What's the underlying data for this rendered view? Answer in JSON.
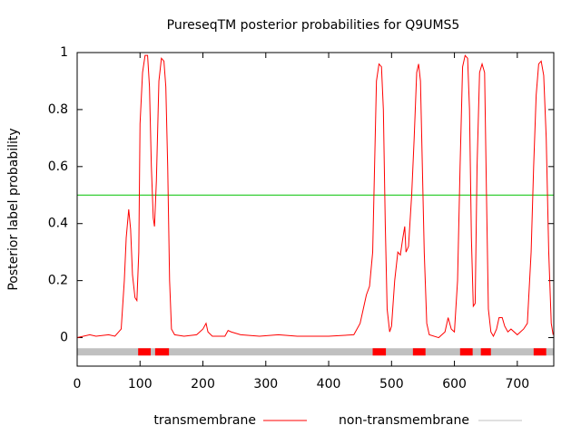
{
  "chart_data": {
    "type": "line",
    "title": "PureseqTM posterior probabilities for Q9UMS5",
    "y_label": "Posterior label probability",
    "xlim": [
      0,
      758
    ],
    "ylim": [
      -0.1,
      1
    ],
    "xticks": [
      0,
      100,
      200,
      300,
      400,
      500,
      600,
      700
    ],
    "yticks": [
      0,
      0.2,
      0.4,
      0.6,
      0.8,
      1
    ],
    "threshold": {
      "value": 0.5,
      "color": "#00c000"
    },
    "series": [
      {
        "name": "transmembrane",
        "color": "#ff0000",
        "x": [
          0,
          10,
          20,
          30,
          50,
          60,
          70,
          75,
          78,
          82,
          85,
          88,
          92,
          95,
          98,
          100,
          104,
          108,
          112,
          115,
          118,
          121,
          123,
          126,
          130,
          134,
          138,
          141,
          144,
          147,
          150,
          155,
          170,
          190,
          200,
          205,
          208,
          215,
          235,
          240,
          245,
          260,
          290,
          320,
          350,
          400,
          440,
          450,
          455,
          460,
          465,
          470,
          473,
          476,
          480,
          484,
          487,
          490,
          493,
          497,
          500,
          505,
          510,
          514,
          518,
          521,
          523,
          527,
          532,
          536,
          540,
          543,
          546,
          549,
          552,
          556,
          560,
          575,
          585,
          590,
          595,
          600,
          605,
          609,
          613,
          617,
          621,
          624,
          627,
          630,
          633,
          636,
          640,
          644,
          648,
          651,
          654,
          658,
          662,
          667,
          671,
          676,
          680,
          685,
          690,
          700,
          710,
          716,
          722,
          726,
          730,
          734,
          738,
          742,
          746,
          750,
          754,
          757
        ],
        "values": [
          0,
          0.005,
          0.01,
          0.005,
          0.01,
          0.005,
          0.03,
          0.2,
          0.35,
          0.45,
          0.38,
          0.22,
          0.14,
          0.13,
          0.3,
          0.75,
          0.93,
          0.99,
          0.99,
          0.88,
          0.6,
          0.42,
          0.39,
          0.55,
          0.9,
          0.98,
          0.97,
          0.88,
          0.6,
          0.2,
          0.03,
          0.01,
          0.005,
          0.01,
          0.03,
          0.05,
          0.02,
          0.005,
          0.005,
          0.025,
          0.02,
          0.01,
          0.005,
          0.01,
          0.005,
          0.005,
          0.01,
          0.05,
          0.1,
          0.15,
          0.18,
          0.3,
          0.6,
          0.9,
          0.96,
          0.95,
          0.8,
          0.4,
          0.1,
          0.02,
          0.04,
          0.2,
          0.3,
          0.29,
          0.35,
          0.39,
          0.3,
          0.32,
          0.5,
          0.7,
          0.93,
          0.96,
          0.9,
          0.6,
          0.3,
          0.05,
          0.01,
          0,
          0.02,
          0.07,
          0.03,
          0.02,
          0.2,
          0.6,
          0.95,
          0.99,
          0.98,
          0.8,
          0.35,
          0.11,
          0.12,
          0.6,
          0.93,
          0.96,
          0.93,
          0.5,
          0.1,
          0.02,
          0.005,
          0.03,
          0.07,
          0.07,
          0.04,
          0.02,
          0.03,
          0.01,
          0.03,
          0.05,
          0.3,
          0.6,
          0.85,
          0.96,
          0.97,
          0.92,
          0.7,
          0.3,
          0.05,
          0.01
        ]
      }
    ],
    "non_transmembrane": {
      "name": "non-transmembrane",
      "color": "#c0c0c0",
      "level": -0.05
    },
    "tm_segments": [
      {
        "start": 97,
        "end": 117
      },
      {
        "start": 124,
        "end": 146
      },
      {
        "start": 470,
        "end": 491
      },
      {
        "start": 534,
        "end": 554
      },
      {
        "start": 609,
        "end": 629
      },
      {
        "start": 642,
        "end": 658
      },
      {
        "start": 726,
        "end": 746
      }
    ]
  }
}
